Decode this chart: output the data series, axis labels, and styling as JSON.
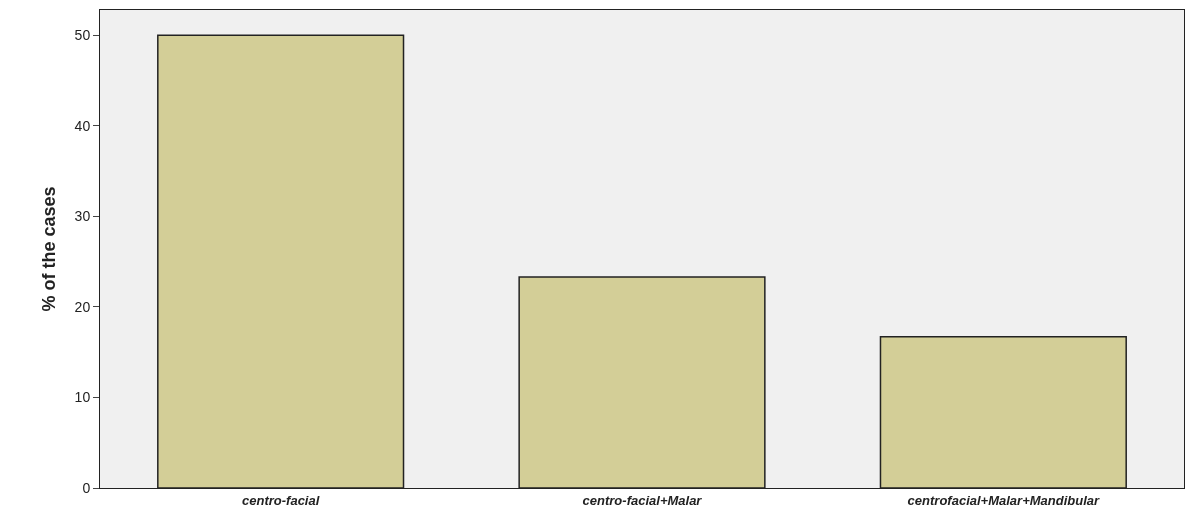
{
  "chart_data": {
    "type": "bar",
    "ylabel": "% of the cases",
    "categories": [
      "centro-facial",
      "centro-facial+Malar",
      "centrofacial+Malar+Mandibular"
    ],
    "values": [
      50,
      23.3,
      16.7
    ],
    "color": "#d3ce97",
    "ylim": [
      0,
      52.8
    ],
    "yticks": [
      0,
      10,
      20,
      30,
      40,
      50
    ],
    "grid": false
  }
}
